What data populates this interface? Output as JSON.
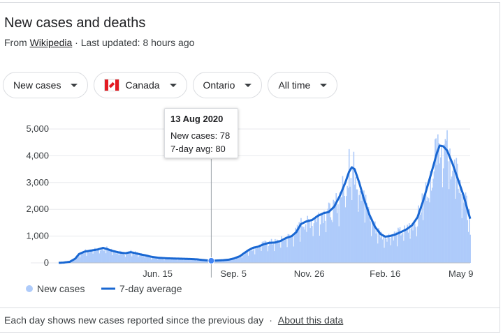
{
  "header": {
    "title": "New cases and deaths",
    "source_prefix": "From",
    "source_link": "Wikipedia",
    "updated": "· Last updated: 8 hours ago"
  },
  "filters": {
    "metric": "New cases",
    "country": "Canada",
    "region": "Ontario",
    "range": "All time"
  },
  "tooltip": {
    "date": "13 Aug 2020",
    "new_cases": "New cases: 78",
    "avg": "7-day avg: 80"
  },
  "footer": {
    "note": "Each day shows new cases reported since the previous day",
    "sep": "·",
    "link": "About this data"
  },
  "colors": {
    "bar": "#aecbfa",
    "line": "#1967d2",
    "grid": "#e8eaed",
    "axis_text": "#3c4043"
  },
  "chart_data": {
    "type": "bar",
    "title": "",
    "xlabel": "",
    "ylabel": "",
    "ylim": [
      0,
      5000
    ],
    "yticks": [
      0,
      1000,
      2000,
      3000,
      4000,
      5000
    ],
    "ytick_labels": [
      "0",
      "1,000",
      "2,000",
      "3,000",
      "4,000",
      "5,000"
    ],
    "xticks": [
      {
        "label": "Jun. 15",
        "day": 107
      },
      {
        "label": "Sep. 5",
        "day": 189
      },
      {
        "label": "Nov. 26",
        "day": 271
      },
      {
        "label": "Feb. 16",
        "day": 353
      },
      {
        "label": "May 9",
        "day": 435
      }
    ],
    "grid": true,
    "legend_position": "bottom-left",
    "series": [
      {
        "name": "New cases",
        "kind": "bar"
      },
      {
        "name": "7-day average",
        "kind": "line"
      }
    ],
    "highlight": {
      "day": 165,
      "value": 80
    },
    "day_origin": "2020-03-01",
    "x_range": [
      0,
      445
    ],
    "avg_keypoints": [
      [
        0,
        0
      ],
      [
        5,
        10
      ],
      [
        12,
        40
      ],
      [
        18,
        160
      ],
      [
        22,
        330
      ],
      [
        28,
        420
      ],
      [
        35,
        460
      ],
      [
        42,
        500
      ],
      [
        48,
        560
      ],
      [
        52,
        520
      ],
      [
        58,
        450
      ],
      [
        65,
        390
      ],
      [
        72,
        360
      ],
      [
        78,
        400
      ],
      [
        82,
        370
      ],
      [
        88,
        320
      ],
      [
        94,
        280
      ],
      [
        100,
        230
      ],
      [
        108,
        190
      ],
      [
        118,
        170
      ],
      [
        128,
        160
      ],
      [
        138,
        150
      ],
      [
        146,
        140
      ],
      [
        150,
        130
      ],
      [
        155,
        110
      ],
      [
        160,
        95
      ],
      [
        165,
        80
      ],
      [
        172,
        90
      ],
      [
        178,
        100
      ],
      [
        184,
        120
      ],
      [
        190,
        170
      ],
      [
        196,
        250
      ],
      [
        200,
        350
      ],
      [
        205,
        470
      ],
      [
        210,
        560
      ],
      [
        216,
        610
      ],
      [
        222,
        700
      ],
      [
        228,
        750
      ],
      [
        234,
        760
      ],
      [
        240,
        820
      ],
      [
        246,
        930
      ],
      [
        252,
        1000
      ],
      [
        257,
        1150
      ],
      [
        262,
        1450
      ],
      [
        268,
        1550
      ],
      [
        274,
        1600
      ],
      [
        280,
        1750
      ],
      [
        286,
        1850
      ],
      [
        292,
        1900
      ],
      [
        298,
        2100
      ],
      [
        304,
        2500
      ],
      [
        310,
        3000
      ],
      [
        314,
        3400
      ],
      [
        317,
        3570
      ],
      [
        320,
        3500
      ],
      [
        325,
        3000
      ],
      [
        330,
        2400
      ],
      [
        336,
        1800
      ],
      [
        342,
        1350
      ],
      [
        348,
        1080
      ],
      [
        353,
        980
      ],
      [
        358,
        1000
      ],
      [
        364,
        1060
      ],
      [
        370,
        1150
      ],
      [
        376,
        1250
      ],
      [
        382,
        1400
      ],
      [
        388,
        1700
      ],
      [
        394,
        2300
      ],
      [
        400,
        3000
      ],
      [
        405,
        3600
      ],
      [
        409,
        4100
      ],
      [
        412,
        4380
      ],
      [
        416,
        4350
      ],
      [
        420,
        4200
      ],
      [
        426,
        3700
      ],
      [
        432,
        3100
      ],
      [
        438,
        2500
      ],
      [
        442,
        2000
      ],
      [
        445,
        1650
      ]
    ]
  }
}
